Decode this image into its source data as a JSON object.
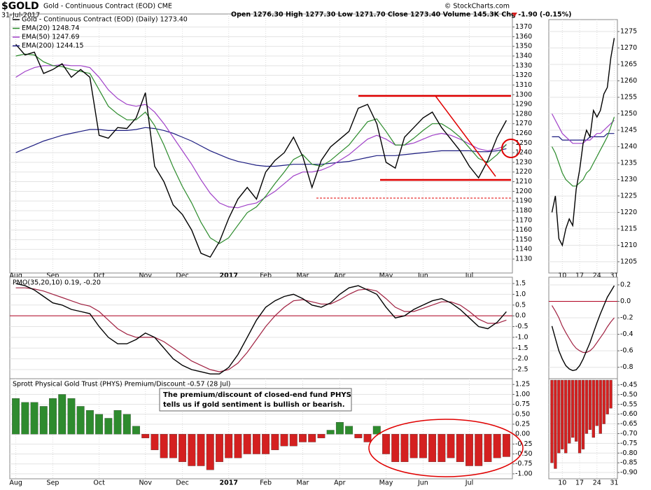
{
  "header": {
    "symbol": "$GOLD",
    "name": "Gold - Continuous Contract (EOD) CME",
    "date": "31-Jul-2017",
    "quote": "Open 1276.30 High 1277.30 Low 1271.70 Close 1273.40 Volume 145.3K Chg -1.90 (-0.15%)",
    "credit": "© StockCharts.com"
  },
  "chart_data": [
    {
      "type": "line",
      "grid": true,
      "categories": [
        "Aug",
        null,
        null,
        null,
        "Sep",
        null,
        null,
        null,
        null,
        "Oct",
        null,
        null,
        null,
        null,
        "Nov",
        null,
        null,
        null,
        "Dec",
        null,
        null,
        null,
        null,
        "2017",
        null,
        null,
        null,
        "Feb",
        null,
        null,
        null,
        "Mar",
        null,
        null,
        null,
        "Apr",
        null,
        null,
        null,
        null,
        "May",
        null,
        null,
        null,
        "Jun",
        null,
        null,
        null,
        null,
        "Jul",
        null,
        null,
        null,
        null
      ],
      "ylim": [
        1117,
        1382
      ],
      "yticks": [
        1130,
        1140,
        1150,
        1160,
        1170,
        1180,
        1190,
        1200,
        1210,
        1220,
        1230,
        1240,
        1250,
        1260,
        1270,
        1280,
        1290,
        1300,
        1310,
        1320,
        1330,
        1340,
        1350,
        1360,
        1370
      ],
      "series": [
        {
          "name": "Gold - Continuous Contract (EOD) (Daily) 1273.40",
          "color": "#000000",
          "values": [
            1352,
            1341,
            1344,
            1322,
            1326,
            1332,
            1318,
            1326,
            1318,
            1258,
            1255,
            1266,
            1265,
            1276,
            1302,
            1226,
            1210,
            1186,
            1176,
            1160,
            1136,
            1132,
            1148,
            1172,
            1192,
            1204,
            1192,
            1220,
            1232,
            1240,
            1256,
            1236,
            1204,
            1232,
            1246,
            1254,
            1262,
            1286,
            1290,
            1270,
            1230,
            1224,
            1256,
            1266,
            1276,
            1282,
            1266,
            1254,
            1242,
            1226,
            1214,
            1232,
            1256,
            1273.4
          ]
        },
        {
          "name": "EMA(20) 1248.74",
          "color": "#2a8a2a",
          "values": [
            1340,
            1342,
            1341,
            1334,
            1330,
            1329,
            1326,
            1324,
            1322,
            1305,
            1288,
            1280,
            1274,
            1274,
            1282,
            1268,
            1248,
            1225,
            1205,
            1188,
            1168,
            1152,
            1146,
            1152,
            1165,
            1178,
            1184,
            1195,
            1208,
            1220,
            1233,
            1238,
            1228,
            1226,
            1232,
            1240,
            1248,
            1260,
            1272,
            1275,
            1262,
            1248,
            1248,
            1255,
            1263,
            1270,
            1270,
            1264,
            1256,
            1245,
            1234,
            1230,
            1238,
            1248.74
          ]
        },
        {
          "name": "EMA(50) 1247.69",
          "color": "#a040c8",
          "values": [
            1318,
            1324,
            1328,
            1330,
            1330,
            1331,
            1330,
            1330,
            1328,
            1318,
            1305,
            1296,
            1290,
            1288,
            1290,
            1282,
            1270,
            1256,
            1242,
            1228,
            1212,
            1198,
            1188,
            1184,
            1183,
            1186,
            1188,
            1194,
            1200,
            1208,
            1216,
            1220,
            1220,
            1222,
            1226,
            1232,
            1238,
            1246,
            1254,
            1258,
            1254,
            1248,
            1248,
            1250,
            1254,
            1258,
            1260,
            1258,
            1254,
            1249,
            1244,
            1242,
            1244,
            1247.69
          ]
        },
        {
          "name": "EMA(200) 1244.15",
          "color": "#1c1c80",
          "values": [
            1240,
            1244,
            1248,
            1252,
            1255,
            1258,
            1260,
            1262,
            1264,
            1264,
            1263,
            1263,
            1263,
            1264,
            1266,
            1265,
            1263,
            1260,
            1256,
            1252,
            1247,
            1242,
            1238,
            1234,
            1231,
            1229,
            1227,
            1226,
            1226,
            1227,
            1228,
            1228,
            1228,
            1228,
            1229,
            1230,
            1231,
            1233,
            1235,
            1237,
            1237,
            1237,
            1238,
            1239,
            1240,
            1241,
            1242,
            1242,
            1242,
            1242,
            1241,
            1241,
            1242,
            1244.15
          ]
        }
      ]
    },
    {
      "type": "line",
      "grid": true,
      "title": "PMO(35,20,10) 0.19, -0.20",
      "ylim": [
        -2.89,
        1.73
      ],
      "yticks": [
        1.5,
        {
          "value": 1,
          "label": "1.0"
        },
        0.5,
        {
          "value": 0,
          "label": "0.0"
        },
        -0.5,
        {
          "value": -1,
          "label": "-1.0"
        },
        -1.5,
        {
          "value": -2,
          "label": "-2.0"
        },
        -2.5
      ],
      "reference_line": {
        "value": 0,
        "color": "#b00020"
      },
      "series": [
        {
          "color": "#000000",
          "values": [
            1.5,
            1.4,
            1.2,
            0.9,
            0.6,
            0.5,
            0.3,
            0.2,
            0.1,
            -0.5,
            -1.0,
            -1.3,
            -1.3,
            -1.1,
            -0.8,
            -1.0,
            -1.5,
            -2.0,
            -2.3,
            -2.5,
            -2.6,
            -2.7,
            -2.7,
            -2.4,
            -1.8,
            -1.0,
            -0.2,
            0.4,
            0.7,
            0.9,
            1.0,
            0.8,
            0.5,
            0.4,
            0.6,
            1.0,
            1.3,
            1.4,
            1.2,
            1.0,
            0.4,
            -0.1,
            0.0,
            0.3,
            0.5,
            0.7,
            0.8,
            0.6,
            0.3,
            -0.1,
            -0.5,
            -0.6,
            -0.3,
            0.19
          ]
        },
        {
          "color": "#a02040",
          "values": [
            1.3,
            1.3,
            1.25,
            1.15,
            1.0,
            0.85,
            0.7,
            0.55,
            0.45,
            0.2,
            -0.2,
            -0.6,
            -0.85,
            -1.0,
            -1.0,
            -1.0,
            -1.2,
            -1.5,
            -1.8,
            -2.1,
            -2.3,
            -2.5,
            -2.6,
            -2.5,
            -2.2,
            -1.7,
            -1.1,
            -0.5,
            0.0,
            0.4,
            0.7,
            0.75,
            0.65,
            0.55,
            0.55,
            0.75,
            1.0,
            1.2,
            1.25,
            1.15,
            0.8,
            0.4,
            0.2,
            0.2,
            0.35,
            0.5,
            0.65,
            0.65,
            0.5,
            0.2,
            -0.15,
            -0.35,
            -0.35,
            -0.2
          ]
        }
      ]
    },
    {
      "type": "bar",
      "grid": true,
      "title": "Sprott Physical Gold Trust (PHYS) Premium/Discount -0.57 (28 Jul)",
      "annotation": [
        "The premium/discount of closed-end fund PHYS",
        "tells us if gold sentiment is bullish or bearish."
      ],
      "categories": [
        "Aug",
        null,
        null,
        null,
        "Sep",
        null,
        null,
        null,
        null,
        "Oct",
        null,
        null,
        null,
        null,
        "Nov",
        null,
        null,
        null,
        "Dec",
        null,
        null,
        null,
        null,
        "2017",
        null,
        null,
        null,
        "Feb",
        null,
        null,
        null,
        "Mar",
        null,
        null,
        null,
        "Apr",
        null,
        null,
        null,
        null,
        "May",
        null,
        null,
        null,
        "Jun",
        null,
        null,
        null,
        null,
        "Jul",
        null,
        null,
        null,
        null
      ],
      "ylim": [
        -1.09,
        1.36
      ],
      "yticks": [
        1.25,
        {
          "value": 1,
          "label": "1.00"
        },
        0.75,
        {
          "value": 0.5,
          "label": "0.50"
        },
        0.25,
        {
          "value": 0,
          "label": "0.00"
        },
        -0.25,
        {
          "value": -0.5,
          "label": "-0.50"
        },
        -0.75,
        {
          "value": -1,
          "label": "-1.00"
        }
      ],
      "pos_color": "#2e8b2e",
      "neg_color": "#d42020",
      "values": [
        0.9,
        0.8,
        0.8,
        0.7,
        0.9,
        1.0,
        0.9,
        0.7,
        0.6,
        0.5,
        0.4,
        0.6,
        0.5,
        0.2,
        -0.1,
        -0.4,
        -0.6,
        -0.6,
        -0.7,
        -0.8,
        -0.8,
        -0.9,
        -0.7,
        -0.6,
        -0.6,
        -0.5,
        -0.5,
        -0.5,
        -0.4,
        -0.3,
        -0.3,
        -0.2,
        -0.2,
        -0.1,
        0.1,
        0.3,
        0.2,
        -0.1,
        -0.2,
        0.2,
        -0.5,
        -0.7,
        -0.7,
        -0.6,
        -0.6,
        -0.7,
        -0.7,
        -0.6,
        -0.7,
        -0.8,
        -0.8,
        -0.7,
        -0.6,
        -0.57
      ]
    },
    {
      "type": "line",
      "grid": true,
      "categories": [
        null,
        null,
        null,
        "10",
        null,
        null,
        null,
        null,
        "17",
        null,
        null,
        null,
        null,
        "24",
        null,
        null,
        null,
        null,
        "31"
      ],
      "ylim": [
        1202,
        1278.2
      ],
      "yticks": [
        1205,
        1210,
        1215,
        1220,
        1225,
        1230,
        1235,
        1240,
        1245,
        1250,
        1255,
        1260,
        1265,
        1270,
        1275
      ],
      "series": [
        {
          "color": "#000000",
          "values": [
            1220,
            1225,
            1212,
            1210,
            1215,
            1218,
            1216,
            1227,
            1233,
            1241,
            1245,
            1243,
            1251,
            1249,
            1251,
            1256,
            1258,
            1267,
            1273
          ]
        },
        {
          "color": "#2a8a2a",
          "values": [
            1240,
            1238,
            1235,
            1232,
            1230,
            1229,
            1228,
            1228,
            1229,
            1230,
            1232,
            1233,
            1235,
            1237,
            1239,
            1241,
            1243,
            1246,
            1249
          ]
        },
        {
          "color": "#a040c8",
          "values": [
            1250,
            1248,
            1246,
            1244,
            1243,
            1242,
            1241,
            1241,
            1241,
            1241,
            1242,
            1242,
            1243,
            1244,
            1244,
            1245,
            1246,
            1247,
            1248
          ]
        },
        {
          "color": "#1c1c80",
          "values": [
            1243,
            1243,
            1243,
            1242,
            1242,
            1242,
            1242,
            1242,
            1242,
            1242,
            1242,
            1243,
            1243,
            1243,
            1243,
            1243,
            1244,
            1244,
            1244
          ]
        }
      ]
    },
    {
      "type": "line",
      "grid": true,
      "ylim": [
        -0.93,
        0.276
      ],
      "yticks": [
        0.2,
        {
          "value": 0,
          "label": "0.0"
        },
        -0.2,
        -0.4,
        -0.6,
        -0.8
      ],
      "reference_line": {
        "value": 0,
        "color": "#b00020"
      },
      "series": [
        {
          "color": "#000000",
          "values": [
            -0.3,
            -0.45,
            -0.6,
            -0.7,
            -0.78,
            -0.82,
            -0.84,
            -0.83,
            -0.78,
            -0.7,
            -0.6,
            -0.5,
            -0.38,
            -0.26,
            -0.15,
            -0.05,
            0.05,
            0.12,
            0.19
          ]
        },
        {
          "color": "#a02040",
          "values": [
            -0.05,
            -0.12,
            -0.2,
            -0.3,
            -0.38,
            -0.45,
            -0.52,
            -0.57,
            -0.6,
            -0.62,
            -0.62,
            -0.6,
            -0.56,
            -0.5,
            -0.44,
            -0.38,
            -0.31,
            -0.25,
            -0.2
          ]
        }
      ]
    },
    {
      "type": "bar",
      "grid": true,
      "categories": [
        null,
        null,
        null,
        "10",
        null,
        null,
        null,
        null,
        "17",
        null,
        null,
        null,
        null,
        "24",
        null,
        null,
        null,
        null,
        "31"
      ],
      "ylim": [
        -0.925,
        -0.425
      ],
      "yticks": [
        -0.45,
        {
          "value": -0.5,
          "label": "-0.50"
        },
        -0.55,
        {
          "value": -0.6,
          "label": "-0.60"
        },
        -0.65,
        {
          "value": -0.7,
          "label": "-0.70"
        },
        -0.75,
        {
          "value": -0.8,
          "label": "-0.80"
        },
        -0.85,
        {
          "value": -0.9,
          "label": "-0.90"
        }
      ],
      "pos_color": "#2e8b2e",
      "neg_color": "#d42020",
      "values": [
        -0.85,
        -0.88,
        -0.8,
        -0.78,
        -0.8,
        -0.75,
        -0.72,
        -0.74,
        -0.8,
        -0.78,
        -0.7,
        -0.68,
        -0.72,
        -0.66,
        -0.7,
        -0.65,
        -0.6,
        -0.57,
        null
      ]
    }
  ]
}
